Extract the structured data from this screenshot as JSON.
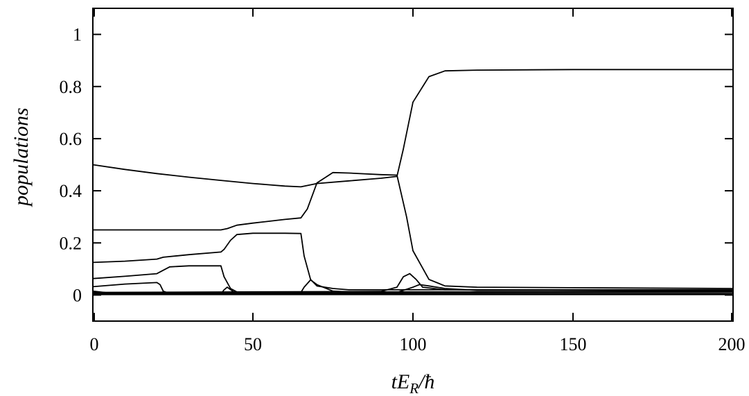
{
  "chart_data": {
    "type": "line",
    "ylabel": "populations",
    "xlabel": {
      "prefix": "tE",
      "subscript": "R",
      "suffix": "/ħ"
    },
    "xlim": [
      0,
      200
    ],
    "ylim": [
      -0.1,
      1.1
    ],
    "xticks": [
      0,
      50,
      100,
      150,
      200
    ],
    "yticks": [
      0,
      0.2,
      0.4,
      0.6,
      0.8,
      1
    ],
    "xtick_labels": [
      "0",
      "50",
      "100",
      "150",
      "200"
    ],
    "ytick_labels": [
      "0",
      "0.2",
      "0.4",
      "0.6",
      "0.8",
      "1"
    ],
    "grid": false,
    "line_color": "#000000",
    "series": [
      {
        "x": [
          0,
          10,
          20,
          30,
          40,
          50,
          60,
          65,
          70,
          80,
          90,
          95,
          97,
          100,
          105,
          110,
          120,
          150,
          200
        ],
        "y": [
          0.5,
          0.482,
          0.466,
          0.452,
          0.44,
          0.428,
          0.418,
          0.415,
          0.428,
          0.438,
          0.448,
          0.455,
          0.56,
          0.74,
          0.838,
          0.86,
          0.863,
          0.865,
          0.865
        ]
      },
      {
        "x": [
          0,
          20,
          40,
          42,
          45,
          50,
          60,
          65,
          67,
          70,
          75,
          80,
          90,
          95,
          98,
          100,
          105,
          110,
          120,
          150,
          200
        ],
        "y": [
          0.25,
          0.25,
          0.25,
          0.255,
          0.268,
          0.276,
          0.29,
          0.296,
          0.33,
          0.43,
          0.47,
          0.468,
          0.462,
          0.46,
          0.3,
          0.17,
          0.06,
          0.035,
          0.03,
          0.028,
          0.025
        ]
      },
      {
        "x": [
          0,
          10,
          20,
          22,
          30,
          40,
          41,
          43,
          45,
          50,
          60,
          65,
          66,
          68,
          70,
          75,
          80,
          90,
          95,
          200
        ],
        "y": [
          0.125,
          0.13,
          0.138,
          0.145,
          0.155,
          0.165,
          0.175,
          0.21,
          0.232,
          0.237,
          0.237,
          0.236,
          0.15,
          0.06,
          0.035,
          0.025,
          0.02,
          0.02,
          0.02,
          0.02
        ]
      },
      {
        "x": [
          0,
          10,
          20,
          22,
          24,
          30,
          40,
          41,
          43,
          45,
          50,
          60,
          200
        ],
        "y": [
          0.063,
          0.072,
          0.082,
          0.095,
          0.108,
          0.112,
          0.112,
          0.07,
          0.025,
          0.012,
          0.01,
          0.01,
          0.012
        ]
      },
      {
        "x": [
          0,
          10,
          20,
          21,
          22,
          24,
          30,
          200
        ],
        "y": [
          0.032,
          0.042,
          0.048,
          0.04,
          0.015,
          0.006,
          0.004,
          0.004
        ]
      },
      {
        "x": [
          0,
          5,
          10,
          200
        ],
        "y": [
          0.015,
          0.008,
          0.004,
          0.003
        ]
      },
      {
        "x": [
          0,
          20,
          21,
          22,
          24,
          200
        ],
        "y": [
          0.003,
          0.003,
          0.008,
          0.012,
          0.004,
          0.003
        ]
      },
      {
        "x": [
          0,
          40,
          41,
          42,
          44,
          50,
          200
        ],
        "y": [
          0.004,
          0.004,
          0.02,
          0.03,
          0.012,
          0.006,
          0.006
        ]
      },
      {
        "x": [
          0,
          60,
          65,
          66,
          68,
          70,
          75,
          80,
          200
        ],
        "y": [
          0.008,
          0.008,
          0.01,
          0.03,
          0.058,
          0.04,
          0.015,
          0.012,
          0.012
        ]
      },
      {
        "x": [
          0,
          90,
          95,
          97,
          99,
          101,
          103,
          110,
          200
        ],
        "y": [
          0.01,
          0.014,
          0.03,
          0.07,
          0.082,
          0.06,
          0.03,
          0.02,
          0.015
        ]
      },
      {
        "x": [
          0,
          95,
          100,
          102,
          105,
          110,
          120,
          200
        ],
        "y": [
          0.006,
          0.01,
          0.03,
          0.04,
          0.035,
          0.025,
          0.018,
          0.018
        ]
      },
      {
        "x": [
          0,
          200
        ],
        "y": [
          0.002,
          0.002
        ]
      }
    ]
  }
}
